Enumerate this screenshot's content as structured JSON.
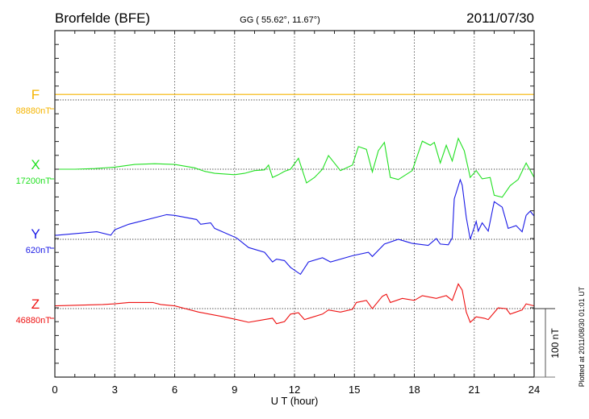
{
  "header": {
    "station": "Brorfelde (BFE)",
    "coords": "GG ( 55.62°,  11.67°)",
    "date": "2011/07/30"
  },
  "footer": {
    "plotted": "Plotted at 2011/08/30 01:01 UT",
    "scale_label": "100 nT"
  },
  "chart_data": {
    "type": "line",
    "title": "Brorfelde (BFE)",
    "xlabel": "U T (hour)",
    "xlim": [
      0,
      24
    ],
    "xticks": [
      "0",
      "3",
      "6",
      "9",
      "12",
      "15",
      "18",
      "21",
      "24"
    ],
    "grid": true,
    "scale_bar_nT": 100,
    "y_units": "nT offset from baseline",
    "series": [
      {
        "name": "F",
        "baseline_label": "88880nT",
        "color": "#f5b400",
        "points": [
          [
            0,
            8
          ],
          [
            24,
            8
          ]
        ]
      },
      {
        "name": "X",
        "baseline_label": "17200nT",
        "color": "#22e022",
        "points": [
          [
            0,
            0
          ],
          [
            1,
            0
          ],
          [
            2,
            1
          ],
          [
            3,
            3
          ],
          [
            4,
            7
          ],
          [
            5,
            8
          ],
          [
            6,
            7
          ],
          [
            7,
            2
          ],
          [
            7.5,
            -3
          ],
          [
            8,
            -6
          ],
          [
            9,
            -8
          ],
          [
            9.5,
            -6
          ],
          [
            10,
            -2
          ],
          [
            10.5,
            -1
          ],
          [
            10.7,
            6
          ],
          [
            10.9,
            -12
          ],
          [
            11.2,
            -8
          ],
          [
            11.5,
            -3
          ],
          [
            11.8,
            0
          ],
          [
            12.2,
            16
          ],
          [
            12.6,
            -20
          ],
          [
            13,
            -12
          ],
          [
            13.4,
            0
          ],
          [
            13.7,
            20
          ],
          [
            14.3,
            -2
          ],
          [
            14.9,
            6
          ],
          [
            15.2,
            33
          ],
          [
            15.6,
            29
          ],
          [
            15.9,
            -4
          ],
          [
            16.2,
            27
          ],
          [
            16.5,
            39
          ],
          [
            16.8,
            -12
          ],
          [
            17.2,
            -15
          ],
          [
            17.9,
            -2
          ],
          [
            18.4,
            41
          ],
          [
            18.8,
            35
          ],
          [
            19.0,
            39
          ],
          [
            19.3,
            9
          ],
          [
            19.6,
            35
          ],
          [
            19.9,
            12
          ],
          [
            20.2,
            45
          ],
          [
            20.5,
            27
          ],
          [
            20.8,
            -12
          ],
          [
            21.1,
            -2
          ],
          [
            21.4,
            -14
          ],
          [
            21.8,
            -12
          ],
          [
            22.0,
            -38
          ],
          [
            22.4,
            -41
          ],
          [
            22.8,
            -24
          ],
          [
            23.2,
            -15
          ],
          [
            23.6,
            9
          ],
          [
            24,
            -12
          ]
        ]
      },
      {
        "name": "Y",
        "baseline_label": "620nT",
        "color": "#1a1ae6",
        "points": [
          [
            0,
            6
          ],
          [
            0.1,
            6
          ],
          [
            2.1,
            11
          ],
          [
            2.8,
            6
          ],
          [
            3.0,
            14
          ],
          [
            3.7,
            22
          ],
          [
            5.6,
            36
          ],
          [
            6.0,
            35
          ],
          [
            7.1,
            29
          ],
          [
            7.3,
            22
          ],
          [
            7.8,
            24
          ],
          [
            8.0,
            16
          ],
          [
            9.1,
            2
          ],
          [
            9.7,
            -12
          ],
          [
            10.5,
            -19
          ],
          [
            10.9,
            -33
          ],
          [
            11.1,
            -29
          ],
          [
            11.5,
            -31
          ],
          [
            11.8,
            -41
          ],
          [
            12.3,
            -51
          ],
          [
            12.7,
            -33
          ],
          [
            13.4,
            -27
          ],
          [
            13.8,
            -33
          ],
          [
            14.9,
            -24
          ],
          [
            15.7,
            -19
          ],
          [
            15.9,
            -25
          ],
          [
            16.5,
            -7
          ],
          [
            17.2,
            0
          ],
          [
            17.9,
            -6
          ],
          [
            18.7,
            -9
          ],
          [
            19.1,
            1
          ],
          [
            19.3,
            -7
          ],
          [
            19.7,
            -8
          ],
          [
            19.9,
            2
          ],
          [
            20.0,
            59
          ],
          [
            20.3,
            87
          ],
          [
            20.4,
            79
          ],
          [
            20.6,
            32
          ],
          [
            20.8,
            0
          ],
          [
            21.1,
            26
          ],
          [
            21.2,
            12
          ],
          [
            21.4,
            24
          ],
          [
            21.7,
            12
          ],
          [
            22.0,
            55
          ],
          [
            22.4,
            47
          ],
          [
            22.7,
            16
          ],
          [
            23.1,
            20
          ],
          [
            23.4,
            11
          ],
          [
            23.6,
            35
          ],
          [
            23.8,
            41
          ],
          [
            24,
            34
          ]
        ]
      },
      {
        "name": "Z",
        "baseline_label": "46880nT",
        "color": "#ee1111",
        "points": [
          [
            0,
            4
          ],
          [
            2.4,
            6
          ],
          [
            3.0,
            7
          ],
          [
            3.7,
            9
          ],
          [
            4.9,
            9
          ],
          [
            5.3,
            6
          ],
          [
            6.0,
            4
          ],
          [
            7.2,
            -5
          ],
          [
            8.3,
            -11
          ],
          [
            9.1,
            -16
          ],
          [
            9.7,
            -20
          ],
          [
            10.5,
            -16
          ],
          [
            10.9,
            -14
          ],
          [
            11.1,
            -22
          ],
          [
            11.5,
            -19
          ],
          [
            11.8,
            -8
          ],
          [
            12.2,
            -6
          ],
          [
            12.5,
            -16
          ],
          [
            13.4,
            -8
          ],
          [
            13.7,
            -2
          ],
          [
            14.3,
            -5
          ],
          [
            14.9,
            -1
          ],
          [
            15.1,
            9
          ],
          [
            15.6,
            12
          ],
          [
            15.9,
            0
          ],
          [
            16.4,
            18
          ],
          [
            16.6,
            21
          ],
          [
            16.8,
            9
          ],
          [
            17.4,
            15
          ],
          [
            18.0,
            12
          ],
          [
            18.4,
            19
          ],
          [
            19.1,
            15
          ],
          [
            19.6,
            19
          ],
          [
            19.9,
            12
          ],
          [
            20.2,
            36
          ],
          [
            20.4,
            27
          ],
          [
            20.6,
            -5
          ],
          [
            20.8,
            -20
          ],
          [
            21.1,
            -12
          ],
          [
            21.5,
            -14
          ],
          [
            21.7,
            -16
          ],
          [
            22.2,
            1
          ],
          [
            22.6,
            0
          ],
          [
            22.8,
            -8
          ],
          [
            23.4,
            -2
          ],
          [
            23.6,
            7
          ],
          [
            24,
            4
          ]
        ]
      }
    ]
  }
}
